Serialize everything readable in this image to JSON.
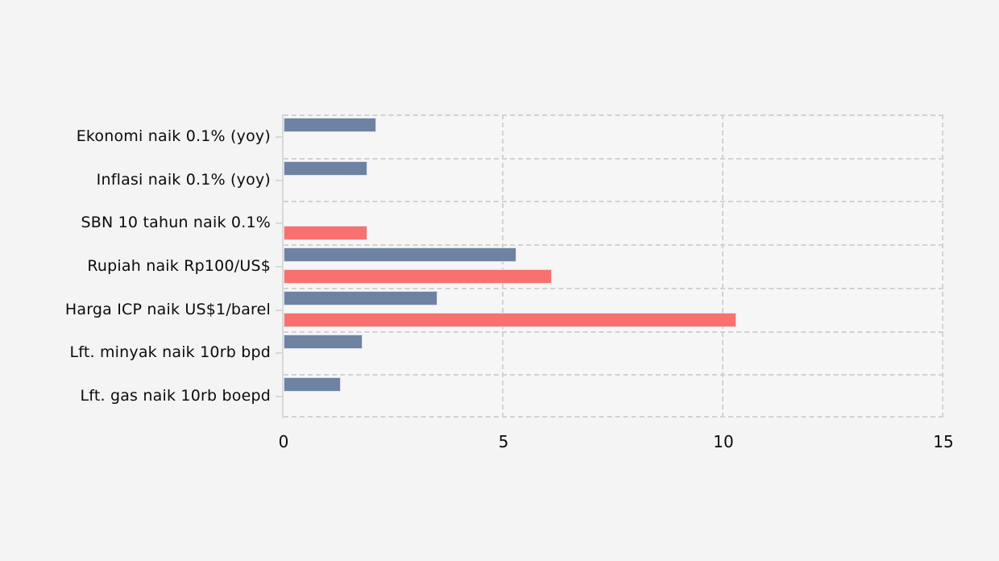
{
  "page": {
    "background_color": "#f4f4f5",
    "title": ""
  },
  "chart_data": {
    "type": "bar",
    "orientation": "horizontal",
    "title": "",
    "xlabel": "",
    "ylabel": "",
    "categories": [
      "Ekonomi naik 0.1% (yoy)",
      "Inflasi naik 0.1% (yoy)",
      "SBN 10 tahun naik 0.1%",
      "Rupiah naik Rp100/US$",
      "Harga ICP naik US$1/barel",
      "Lft. minyak naik 10rb bpd",
      "Lft. gas naik 10rb boepd"
    ],
    "series": [
      {
        "name": "blue-series",
        "color": "#6e83a1",
        "values": [
          2.1,
          1.9,
          null,
          5.3,
          3.5,
          1.8,
          1.3
        ]
      },
      {
        "name": "red-series",
        "color": "#f8716f",
        "values": [
          null,
          null,
          1.9,
          6.1,
          10.3,
          null,
          null
        ]
      }
    ],
    "x_ticks": [
      0,
      5,
      10,
      15
    ],
    "xlim": [
      0,
      15
    ],
    "grid": "dashed",
    "gridline_color": "#d2d2d3",
    "axis_color": "#d9d9da",
    "legend_position": "none"
  }
}
